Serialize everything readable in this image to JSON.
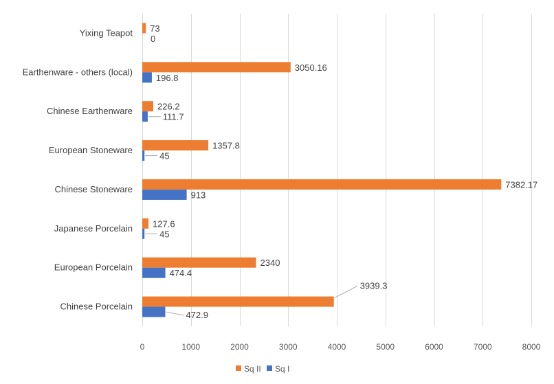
{
  "chart_data": {
    "type": "bar",
    "orientation": "horizontal",
    "categories": [
      "Chinese Porcelain",
      "European Porcelain",
      "Japanese Porcelain",
      "Chinese Stoneware",
      "European Stoneware",
      "Chinese Earthenware",
      "Earthenware - others (local)",
      "Yixing Teapot"
    ],
    "series": [
      {
        "name": "Sq II",
        "color": "#ED7D31",
        "values": [
          3939.3,
          2340,
          127.6,
          7382.17,
          1357.8,
          226.2,
          3050.16,
          73
        ],
        "labels": [
          "3939.3",
          "2340",
          "127.6",
          "7382.17",
          "1357.8",
          "226.2",
          "3050.16",
          "73"
        ]
      },
      {
        "name": "Sq I",
        "color": "#4472C4",
        "values": [
          472.9,
          474.4,
          45,
          913,
          45,
          111.7,
          196.8,
          0
        ],
        "labels": [
          "472.9",
          "474.4",
          "45",
          "913",
          "45",
          "111.7",
          "196.8",
          "0"
        ]
      }
    ],
    "xlim": [
      0,
      8000
    ],
    "xticks": [
      0,
      1000,
      2000,
      3000,
      4000,
      5000,
      6000,
      7000,
      8000
    ],
    "xtick_labels": [
      "0",
      "1000",
      "2000",
      "3000",
      "4000",
      "5000",
      "6000",
      "7000",
      "8000"
    ],
    "grid": true,
    "legend_position": "bottom",
    "title": "",
    "xlabel": "",
    "ylabel": ""
  }
}
